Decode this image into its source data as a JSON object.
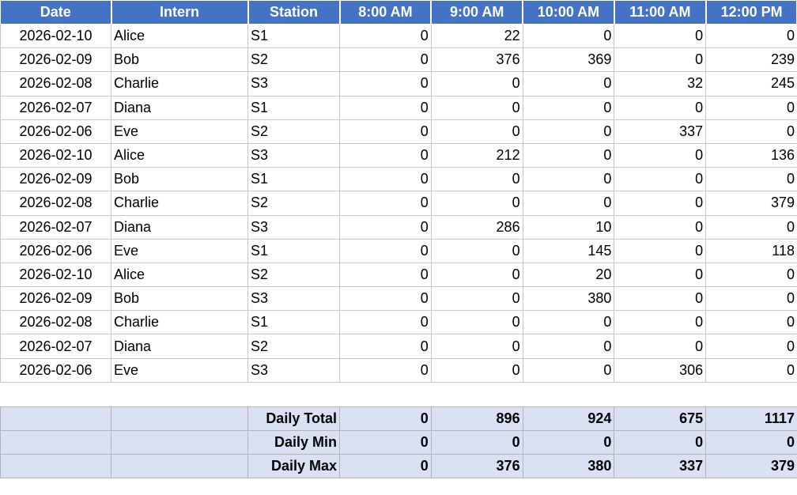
{
  "headers": [
    "Date",
    "Intern",
    "Station",
    "8:00 AM",
    "9:00 AM",
    "10:00 AM",
    "11:00 AM",
    "12:00 PM"
  ],
  "rows": [
    {
      "date": "2026-02-10",
      "intern": "Alice",
      "station": "S1",
      "hours": [
        0,
        22,
        0,
        0,
        0
      ]
    },
    {
      "date": "2026-02-09",
      "intern": "Bob",
      "station": "S2",
      "hours": [
        0,
        376,
        369,
        0,
        239
      ]
    },
    {
      "date": "2026-02-08",
      "intern": "Charlie",
      "station": "S3",
      "hours": [
        0,
        0,
        0,
        32,
        245
      ]
    },
    {
      "date": "2026-02-07",
      "intern": "Diana",
      "station": "S1",
      "hours": [
        0,
        0,
        0,
        0,
        0
      ]
    },
    {
      "date": "2026-02-06",
      "intern": "Eve",
      "station": "S2",
      "hours": [
        0,
        0,
        0,
        337,
        0
      ]
    },
    {
      "date": "2026-02-10",
      "intern": "Alice",
      "station": "S3",
      "hours": [
        0,
        212,
        0,
        0,
        136
      ]
    },
    {
      "date": "2026-02-09",
      "intern": "Bob",
      "station": "S1",
      "hours": [
        0,
        0,
        0,
        0,
        0
      ]
    },
    {
      "date": "2026-02-08",
      "intern": "Charlie",
      "station": "S2",
      "hours": [
        0,
        0,
        0,
        0,
        379
      ]
    },
    {
      "date": "2026-02-07",
      "intern": "Diana",
      "station": "S3",
      "hours": [
        0,
        286,
        10,
        0,
        0
      ]
    },
    {
      "date": "2026-02-06",
      "intern": "Eve",
      "station": "S1",
      "hours": [
        0,
        0,
        145,
        0,
        118
      ]
    },
    {
      "date": "2026-02-10",
      "intern": "Alice",
      "station": "S2",
      "hours": [
        0,
        0,
        20,
        0,
        0
      ]
    },
    {
      "date": "2026-02-09",
      "intern": "Bob",
      "station": "S3",
      "hours": [
        0,
        0,
        380,
        0,
        0
      ]
    },
    {
      "date": "2026-02-08",
      "intern": "Charlie",
      "station": "S1",
      "hours": [
        0,
        0,
        0,
        0,
        0
      ]
    },
    {
      "date": "2026-02-07",
      "intern": "Diana",
      "station": "S2",
      "hours": [
        0,
        0,
        0,
        0,
        0
      ]
    },
    {
      "date": "2026-02-06",
      "intern": "Eve",
      "station": "S3",
      "hours": [
        0,
        0,
        0,
        306,
        0
      ]
    }
  ],
  "summary": [
    {
      "label": "Daily Total",
      "values": [
        0,
        896,
        924,
        675,
        1117
      ]
    },
    {
      "label": "Daily Min",
      "values": [
        0,
        0,
        0,
        0,
        0
      ]
    },
    {
      "label": "Daily Max",
      "values": [
        0,
        376,
        380,
        337,
        379
      ]
    }
  ],
  "colors": {
    "header_bg": "#4472c4",
    "header_text": "#ffffff",
    "summary_bg": "#d9e1f2",
    "grid": "#c8c8c8"
  }
}
